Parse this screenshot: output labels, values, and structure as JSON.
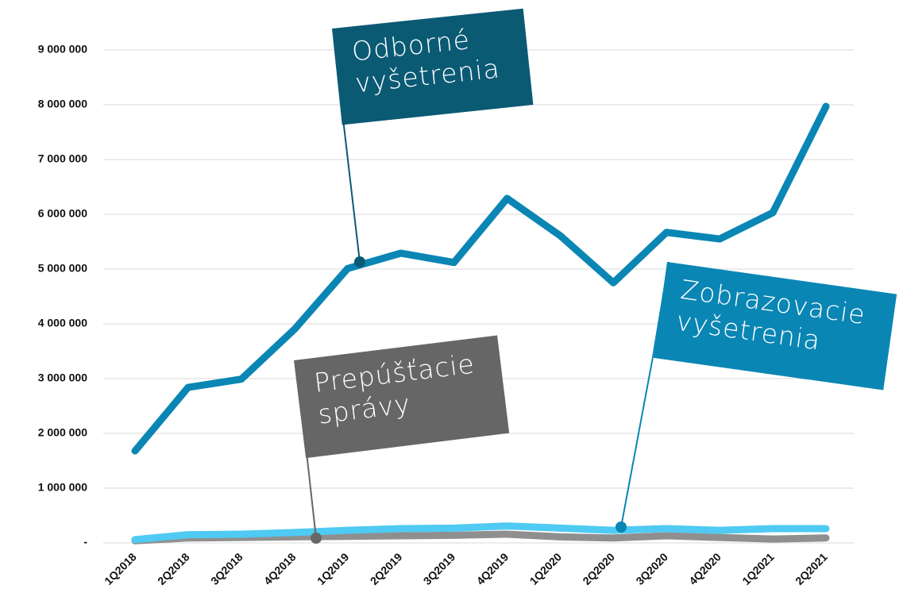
{
  "chart_data": {
    "type": "line",
    "categories": [
      "1Q2018",
      "2Q2018",
      "3Q2018",
      "4Q2018",
      "1Q2019",
      "2Q2019",
      "3Q2019",
      "4Q2019",
      "1Q2020",
      "2Q2020",
      "3Q2020",
      "4Q2020",
      "1Q2021",
      "2Q2021"
    ],
    "series": [
      {
        "name": "Odborné vyšetrenia",
        "color": "#0a86b4",
        "values": [
          1680000,
          2840000,
          2990000,
          3900000,
          5010000,
          5290000,
          5120000,
          6290000,
          5610000,
          4750000,
          5670000,
          5550000,
          6030000,
          7970000
        ]
      },
      {
        "name": "Zobrazovacie vyšetrenia",
        "color": "#4fcaf2",
        "values": [
          60000,
          150000,
          160000,
          190000,
          230000,
          260000,
          270000,
          310000,
          270000,
          230000,
          260000,
          230000,
          260000,
          260000
        ]
      },
      {
        "name": "Prepúšťacie správy",
        "color": "#8f8f8f",
        "values": [
          40000,
          90000,
          100000,
          110000,
          120000,
          130000,
          140000,
          160000,
          110000,
          90000,
          130000,
          100000,
          70000,
          90000
        ]
      }
    ],
    "ylim": [
      0,
      9000000
    ],
    "yticks": [
      {
        "value": 0,
        "label": "-"
      },
      {
        "value": 1000000,
        "label": "1 000 000"
      },
      {
        "value": 2000000,
        "label": "2 000 000"
      },
      {
        "value": 3000000,
        "label": "3 000 000"
      },
      {
        "value": 4000000,
        "label": "4 000 000"
      },
      {
        "value": 5000000,
        "label": "5 000 000"
      },
      {
        "value": 6000000,
        "label": "6 000 000"
      },
      {
        "value": 7000000,
        "label": "7 000 000"
      },
      {
        "value": 8000000,
        "label": "8 000 000"
      },
      {
        "value": 9000000,
        "label": "9 000 000"
      }
    ],
    "grid": true
  }
}
